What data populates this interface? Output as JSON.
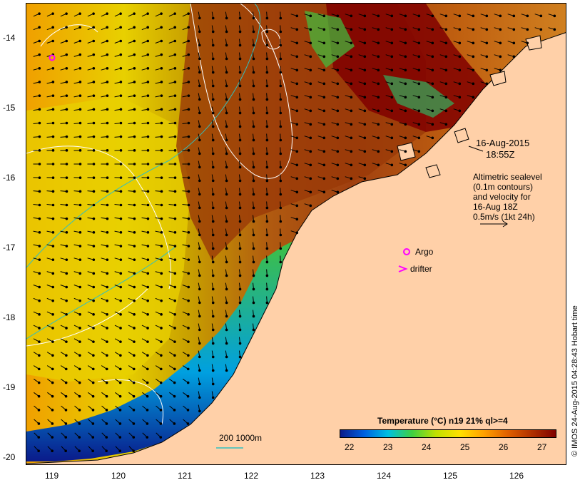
{
  "map": {
    "lat_ticks": [
      "-14",
      "-15",
      "-16",
      "-17",
      "-18",
      "-19",
      "-20"
    ],
    "lon_ticks": [
      "119",
      "120",
      "121",
      "122",
      "123",
      "124",
      "125",
      "126"
    ],
    "timestamp": {
      "date": "16-Aug-2015",
      "time": "18:55Z"
    },
    "altimetry_note": [
      "Altimetric sealevel",
      "(0.1m contours)",
      "and velocity for",
      "16-Aug 18Z",
      "0.5m/s (1kt 24h)"
    ],
    "legend": {
      "argo": "Argo",
      "drifter": "drifter",
      "argo_color": "#ff00ff",
      "drifter_color": "#ff00ff"
    },
    "depth_contour_label": "200  1000m",
    "depth_contour_color": "#30c0c0",
    "sealevel_contour_color": "#ffffff",
    "land_color": "#ffd0a8",
    "colorbar": {
      "title": "Temperature (°C) n19 21% ql>=4",
      "ticks": [
        "22",
        "23",
        "24",
        "25",
        "26",
        "27"
      ],
      "colors": [
        "#0a1a8a",
        "#0060e0",
        "#00c0e0",
        "#40d040",
        "#c0e000",
        "#ffe000",
        "#ffa000",
        "#e06000",
        "#b03000",
        "#800000"
      ]
    },
    "credit": "© IMOS 24-Aug-2015 04:28:43 Hobart time"
  }
}
